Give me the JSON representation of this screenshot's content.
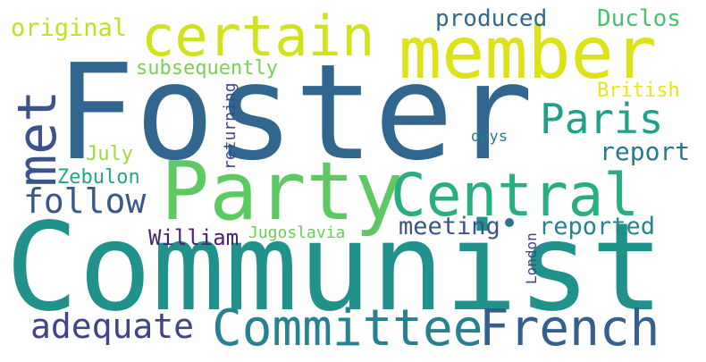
{
  "words": {
    "foster": {
      "text": "Foster",
      "color": "#31668e"
    },
    "communist": {
      "text": "Communist",
      "color": "#21918c"
    },
    "party": {
      "text": "Party",
      "color": "#5ec962"
    },
    "member": {
      "text": "member",
      "color": "#dde318"
    },
    "certain": {
      "text": "certain",
      "color": "#d2e21b"
    },
    "central": {
      "text": "Central",
      "color": "#29af7f"
    },
    "committee": {
      "text": "Committee",
      "color": "#26828e"
    },
    "french": {
      "text": "French",
      "color": "#35608d"
    },
    "paris": {
      "text": "Paris",
      "color": "#1fa088"
    },
    "met": {
      "text": "met",
      "color": "#3b528b"
    },
    "follow": {
      "text": "follow",
      "color": "#38588c"
    },
    "adequate": {
      "text": "adequate",
      "color": "#414487"
    },
    "report": {
      "text": "report",
      "color": "#2a788e"
    },
    "original": {
      "text": "original",
      "color": "#c2df23"
    },
    "produced": {
      "text": "produced",
      "color": "#30698e"
    },
    "duclos": {
      "text": "Duclos",
      "color": "#4ac16d"
    },
    "subsequently": {
      "text": "subsequently",
      "color": "#7ad151"
    },
    "british": {
      "text": "British",
      "color": "#e7e419"
    },
    "july": {
      "text": "July",
      "color": "#a0da39"
    },
    "zebulon": {
      "text": "Zebulon",
      "color": "#22a884"
    },
    "returning": {
      "text": "returning",
      "color": "#3f4889"
    },
    "days": {
      "text": "days",
      "color": "#2a788e"
    },
    "meeting": {
      "text": "meeting",
      "color": "#3b528b"
    },
    "reported": {
      "text": "reported",
      "color": "#25848e"
    },
    "william": {
      "text": "William",
      "color": "#482173"
    },
    "jugoslavia": {
      "text": "Jugoslavia",
      "color": "#6ccd5a"
    },
    "london": {
      "text": "London",
      "color": "#404688"
    }
  }
}
